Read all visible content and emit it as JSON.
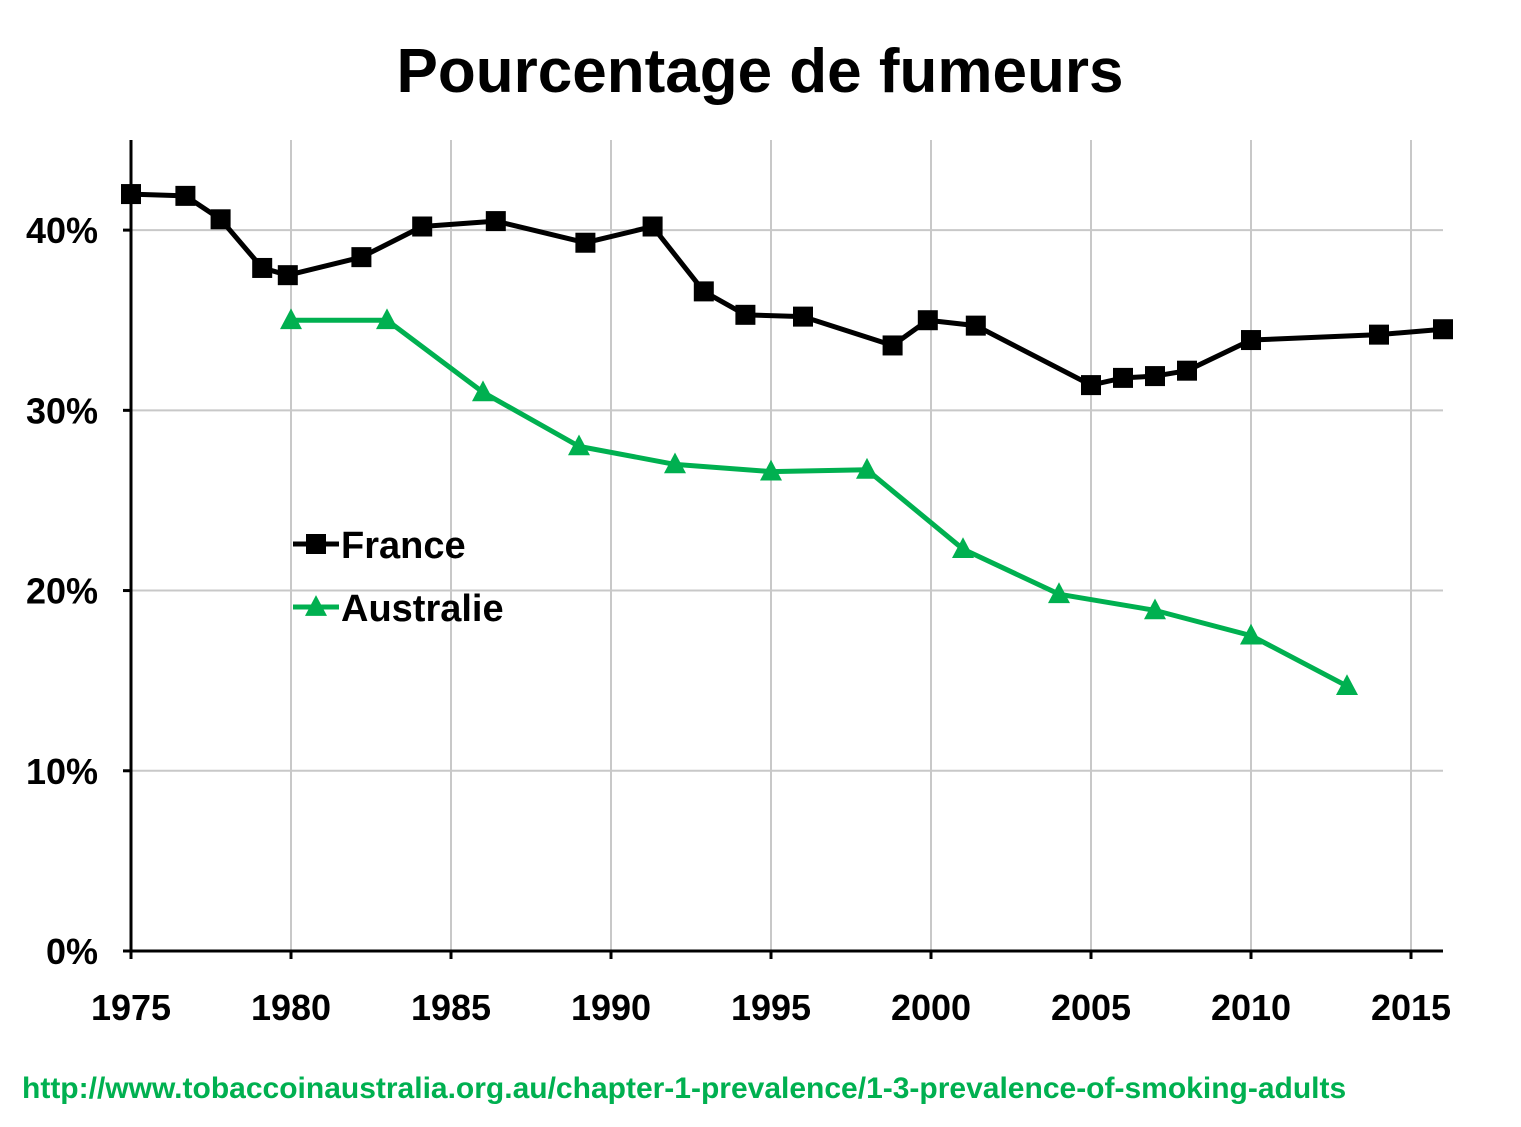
{
  "chart_data": {
    "type": "line",
    "title": "Pourcentage de fumeurs",
    "xlabel": "",
    "ylabel": "",
    "xlim": [
      1975,
      2016
    ],
    "ylim": [
      0,
      45
    ],
    "x_ticks": [
      1975,
      1980,
      1985,
      1990,
      1995,
      2000,
      2005,
      2010,
      2015
    ],
    "x_tick_labels": [
      "1975",
      "1980",
      "1985",
      "1990",
      "1995",
      "2000",
      "2005",
      "2010",
      "2015"
    ],
    "y_ticks": [
      0,
      10,
      20,
      30,
      40
    ],
    "y_tick_labels": [
      "0%",
      "10%",
      "20%",
      "30%",
      "40%"
    ],
    "grid": true,
    "legend_position": "center-left",
    "series": [
      {
        "name": "France",
        "color": "#000000",
        "marker": "square",
        "x": [
          1975,
          1976.7,
          1977.8,
          1979.1,
          1979.9,
          1982.2,
          1984.1,
          1986.4,
          1989.2,
          1991.3,
          1992.9,
          1994.2,
          1996.0,
          1998.8,
          1999.9,
          2001.4,
          2005.0,
          2006.0,
          2007.0,
          2008.0,
          2010.0,
          2014.0,
          2016.0
        ],
        "y": [
          42.0,
          41.9,
          40.6,
          37.9,
          37.5,
          38.5,
          40.2,
          40.5,
          39.3,
          40.2,
          36.6,
          35.3,
          35.2,
          33.6,
          35.0,
          34.7,
          31.4,
          31.8,
          31.9,
          32.2,
          33.9,
          34.2,
          34.5
        ]
      },
      {
        "name": "Australie",
        "color": "#00b050",
        "marker": "triangle",
        "x": [
          1980,
          1983,
          1986,
          1989,
          1992,
          1995,
          1998,
          2001,
          2004,
          2007,
          2010,
          2013
        ],
        "y": [
          35.0,
          35.0,
          31.0,
          28.0,
          27.0,
          26.6,
          26.7,
          22.3,
          19.8,
          18.9,
          17.5,
          14.7
        ]
      }
    ]
  },
  "source_text": "http://www.tobaccoinaustralia.org.au/chapter-1-prevalence/1-3-prevalence-of-smoking-adults",
  "source_color": "#00b050"
}
